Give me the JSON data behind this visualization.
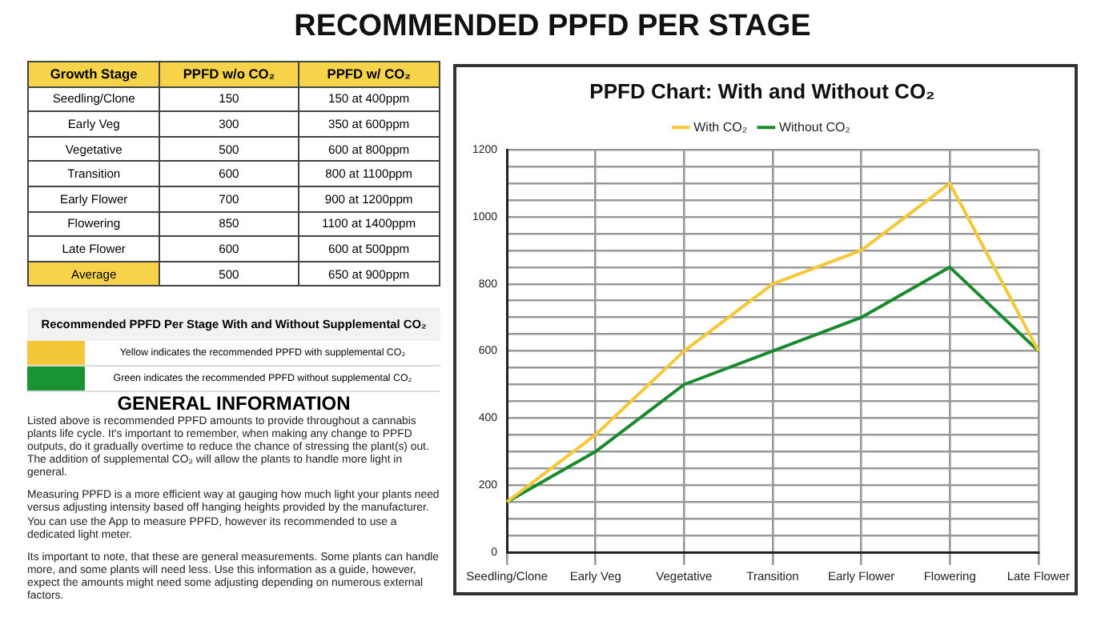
{
  "chart_data": [
    {
      "type": "other",
      "title": "RECOMMENDED PPFD PER STAGE"
    },
    {
      "type": "other",
      "data_labels": true,
      "xlabel": "Growth Stage",
      "categories": [
        "Seedling/Clone",
        "Early Veg",
        "Vegetative",
        "Transition",
        "Early Flower",
        "Flowering",
        "Late Flower",
        "Average"
      ],
      "series": [
        {
          "name": "PPFD w/o CO₂",
          "values": [
            150,
            300,
            500,
            600,
            700,
            850,
            600,
            500
          ]
        },
        {
          "name": "PPFD w/ CO₂",
          "values": [
            150,
            350,
            600,
            800,
            900,
            1100,
            600,
            650
          ],
          "value_labels": [
            "150 at 400ppm",
            "350 at 600ppm",
            "600 at 800ppm",
            "800 at 1100ppm",
            "900 at 1200ppm",
            "1100 at 1400ppm",
            "600 at 500ppm",
            "650 at 900ppm"
          ]
        }
      ]
    },
    {
      "type": "other",
      "title": "Recommended PPFD Per Stage With and Without Supplemental CO₂",
      "colors": [
        "#f5c83a",
        "#1a9433"
      ],
      "annotations": [
        "Yellow indicates the recommended PPFD with supplemental CO₂",
        "Green indicates the recommended PPFD without supplemental CO₂"
      ]
    },
    {
      "type": "other",
      "title": "GENERAL INFORMATION",
      "annotations": [
        "Listed above is recommended PPFD amounts to provide throughout a cannabis plants life cycle. It's important to remember, when making any change to PPFD outputs, do it gradually overtime to reduce the chance of stressing the plant(s) out. The addition of supplemental CO₂ will allow the plants to handle more light in general.",
        "Measuring PPFD is a more efficient way at gauging how much light your plants need versus adjusting intensity based off hanging heights provided by the manufacturer. You can use the App to measure PPFD, however its recommended to use a dedicated light meter.",
        "Its important to note, that these are general measurements. Some plants can handle more, and some plants will need less. Use this information as a guide, however, expect the amounts might need some adjusting depending on numerous external factors."
      ]
    },
    {
      "type": "line",
      "title": "PPFD Chart: With and Without CO₂",
      "categories": [
        "Seedling/Clone",
        "Early Veg",
        "Vegetative",
        "Transition",
        "Early Flower",
        "Flowering",
        "Late Flower"
      ],
      "series": [
        {
          "name": "With CO₂",
          "color": "#f5c83a",
          "values": [
            150,
            350,
            600,
            800,
            900,
            1100,
            600
          ]
        },
        {
          "name": "Without CO₂",
          "color": "#1a8a2e",
          "values": [
            150,
            300,
            500,
            600,
            700,
            850,
            600
          ]
        }
      ],
      "ylim": [
        0,
        1200
      ],
      "yticks": [
        0,
        {
          "value": 50,
          "label": null
        },
        {
          "value": 100,
          "label": null
        },
        {
          "value": 150,
          "label": null
        },
        200,
        {
          "value": 250,
          "label": null
        },
        {
          "value": 300,
          "label": null
        },
        {
          "value": 350,
          "label": null
        },
        400,
        {
          "value": 450,
          "label": null
        },
        {
          "value": 500,
          "label": null
        },
        {
          "value": 550,
          "label": null
        },
        600,
        {
          "value": 650,
          "label": null
        },
        {
          "value": 700,
          "label": null
        },
        {
          "value": 750,
          "label": null
        },
        800,
        {
          "value": 850,
          "label": null
        },
        {
          "value": 900,
          "label": null
        },
        {
          "value": 950,
          "label": null
        },
        1000,
        {
          "value": 1050,
          "label": null
        },
        {
          "value": 1100,
          "label": null
        },
        {
          "value": 1150,
          "label": null
        },
        1200
      ],
      "grid": true,
      "legend": "top",
      "marker": "none",
      "line_style": "solid"
    }
  ]
}
